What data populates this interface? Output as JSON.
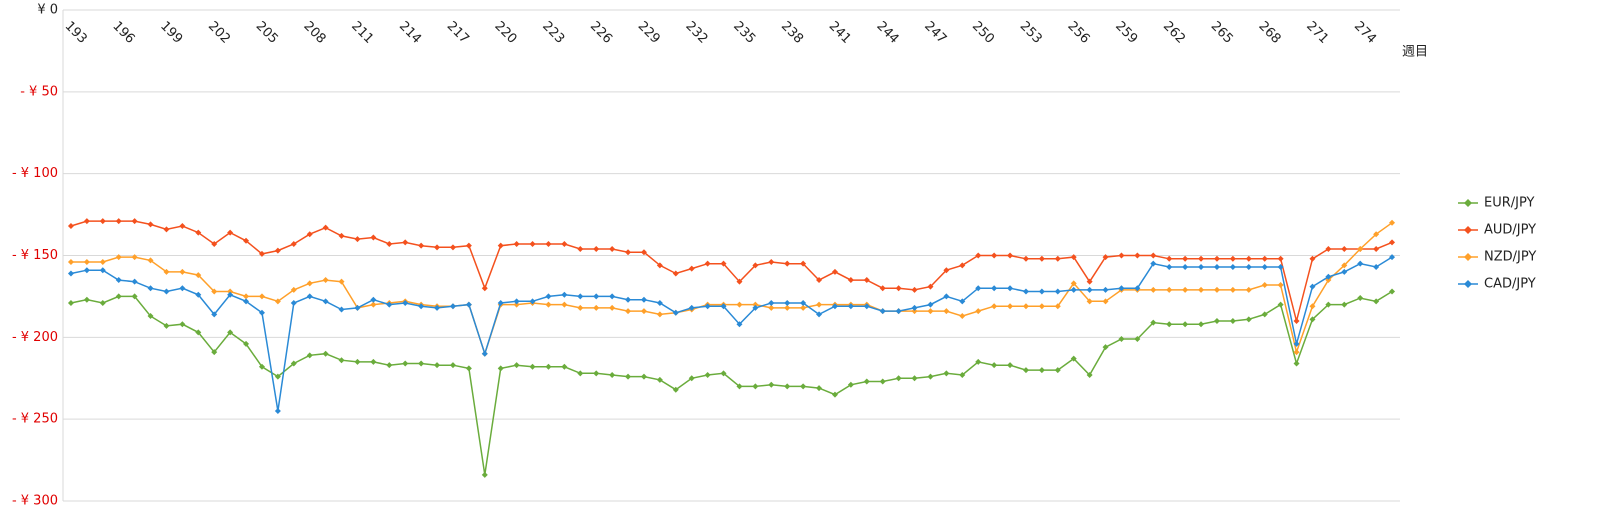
{
  "chart_data": {
    "type": "line",
    "x_label": "週目",
    "categories": [
      "193",
      null,
      null,
      "196",
      null,
      null,
      "199",
      null,
      null,
      "202",
      null,
      null,
      "205",
      null,
      null,
      "208",
      null,
      null,
      "211",
      null,
      null,
      "214",
      null,
      null,
      "217",
      null,
      null,
      "220",
      null,
      null,
      "223",
      null,
      null,
      "226",
      null,
      null,
      "229",
      null,
      null,
      "232",
      null,
      null,
      "235",
      null,
      null,
      "238",
      null,
      null,
      "241",
      null,
      null,
      "244",
      null,
      null,
      "247",
      null,
      null,
      "250",
      null,
      null,
      "253",
      null,
      null,
      "256",
      null,
      null,
      "259",
      null,
      null,
      "262",
      null,
      null,
      "265",
      null,
      null,
      "268",
      null,
      null,
      "271",
      null,
      null,
      "274",
      null,
      null
    ],
    "ylim": [
      -300,
      0
    ],
    "yticks": [
      {
        "value": 0,
        "label": "¥ 0"
      },
      {
        "value": -50,
        "label": "- ¥ 50"
      },
      {
        "value": -100,
        "label": "- ¥ 100"
      },
      {
        "value": -150,
        "label": "- ¥ 150"
      },
      {
        "value": -200,
        "label": "- ¥ 200"
      },
      {
        "value": -250,
        "label": "- ¥ 250"
      },
      {
        "value": -300,
        "label": "- ¥ 300"
      }
    ],
    "negative_tick_color": "#e00000",
    "grid": true,
    "legend": "right",
    "series": [
      {
        "name": "EUR/JPY",
        "color": "#6aac3c",
        "values": [
          -179,
          -177,
          -179,
          -175,
          -175,
          -187,
          -193,
          -192,
          -197,
          -209,
          -197,
          -204,
          -218,
          -224,
          -216,
          -211,
          -210,
          -214,
          -215,
          -215,
          -217,
          -216,
          -216,
          -217,
          -217,
          -219,
          -284,
          -219,
          -217,
          -218,
          -218,
          -218,
          -222,
          -222,
          -223,
          -224,
          -224,
          -226,
          -232,
          -225,
          -223,
          -222,
          -230,
          -230,
          -229,
          -230,
          -230,
          -231,
          -235,
          -229,
          -227,
          -227,
          -225,
          -225,
          -224,
          -222,
          -223,
          -215,
          -217,
          -217,
          -220,
          -220,
          -220,
          -213,
          -223,
          -206,
          -201,
          -201,
          -191,
          -192,
          -192,
          -192,
          -190,
          -190,
          -189,
          -186,
          -180,
          -216,
          -189,
          -180,
          -180,
          -176,
          -178,
          -172
        ]
      },
      {
        "name": "AUD/JPY",
        "color": "#f4511e",
        "values": [
          -132,
          -129,
          -129,
          -129,
          -129,
          -131,
          -134,
          -132,
          -136,
          -143,
          -136,
          -141,
          -149,
          -147,
          -143,
          -137,
          -133,
          -138,
          -140,
          -139,
          -143,
          -142,
          -144,
          -145,
          -145,
          -144,
          -170,
          -144,
          -143,
          -143,
          -143,
          -143,
          -146,
          -146,
          -146,
          -148,
          -148,
          -156,
          -161,
          -158,
          -155,
          -155,
          -166,
          -156,
          -154,
          -155,
          -155,
          -165,
          -160,
          -165,
          -165,
          -170,
          -170,
          -171,
          -169,
          -159,
          -156,
          -150,
          -150,
          -150,
          -152,
          -152,
          -152,
          -151,
          -166,
          -151,
          -150,
          -150,
          -150,
          -152,
          -152,
          -152,
          -152,
          -152,
          -152,
          -152,
          -152,
          -190,
          -152,
          -146,
          -146,
          -146,
          -146,
          -142
        ]
      },
      {
        "name": "NZD/JPY",
        "color": "#ffa02a",
        "values": [
          -154,
          -154,
          -154,
          -151,
          -151,
          -153,
          -160,
          -160,
          -162,
          -172,
          -172,
          -175,
          -175,
          -178,
          -171,
          -167,
          -165,
          -166,
          -182,
          -180,
          -179,
          -178,
          -180,
          -181,
          -181,
          -180,
          -210,
          -180,
          -180,
          -179,
          -180,
          -180,
          -182,
          -182,
          -182,
          -184,
          -184,
          -186,
          -185,
          -183,
          -180,
          -180,
          -180,
          -180,
          -182,
          -182,
          -182,
          -180,
          -180,
          -180,
          -180,
          -184,
          -184,
          -184,
          -184,
          -184,
          -187,
          -184,
          -181,
          -181,
          -181,
          -181,
          -181,
          -167,
          -178,
          -178,
          -171,
          -171,
          -171,
          -171,
          -171,
          -171,
          -171,
          -171,
          -171,
          -168,
          -168,
          -209,
          -181,
          -165,
          -156,
          -146,
          -137,
          -130
        ]
      },
      {
        "name": "CAD/JPY",
        "color": "#2a8ad6",
        "values": [
          -161,
          -159,
          -159,
          -165,
          -166,
          -170,
          -172,
          -170,
          -174,
          -186,
          -174,
          -178,
          -185,
          -245,
          -179,
          -175,
          -178,
          -183,
          -182,
          -177,
          -180,
          -179,
          -181,
          -182,
          -181,
          -180,
          -210,
          -179,
          -178,
          -178,
          -175,
          -174,
          -175,
          -175,
          -175,
          -177,
          -177,
          -179,
          -185,
          -182,
          -181,
          -181,
          -192,
          -182,
          -179,
          -179,
          -179,
          -186,
          -181,
          -181,
          -181,
          -184,
          -184,
          -182,
          -180,
          -175,
          -178,
          -170,
          -170,
          -170,
          -172,
          -172,
          -172,
          -171,
          -171,
          -171,
          -170,
          -170,
          -155,
          -157,
          -157,
          -157,
          -157,
          -157,
          -157,
          -157,
          -157,
          -204,
          -169,
          -163,
          -160,
          -155,
          -157,
          -151
        ]
      }
    ]
  }
}
